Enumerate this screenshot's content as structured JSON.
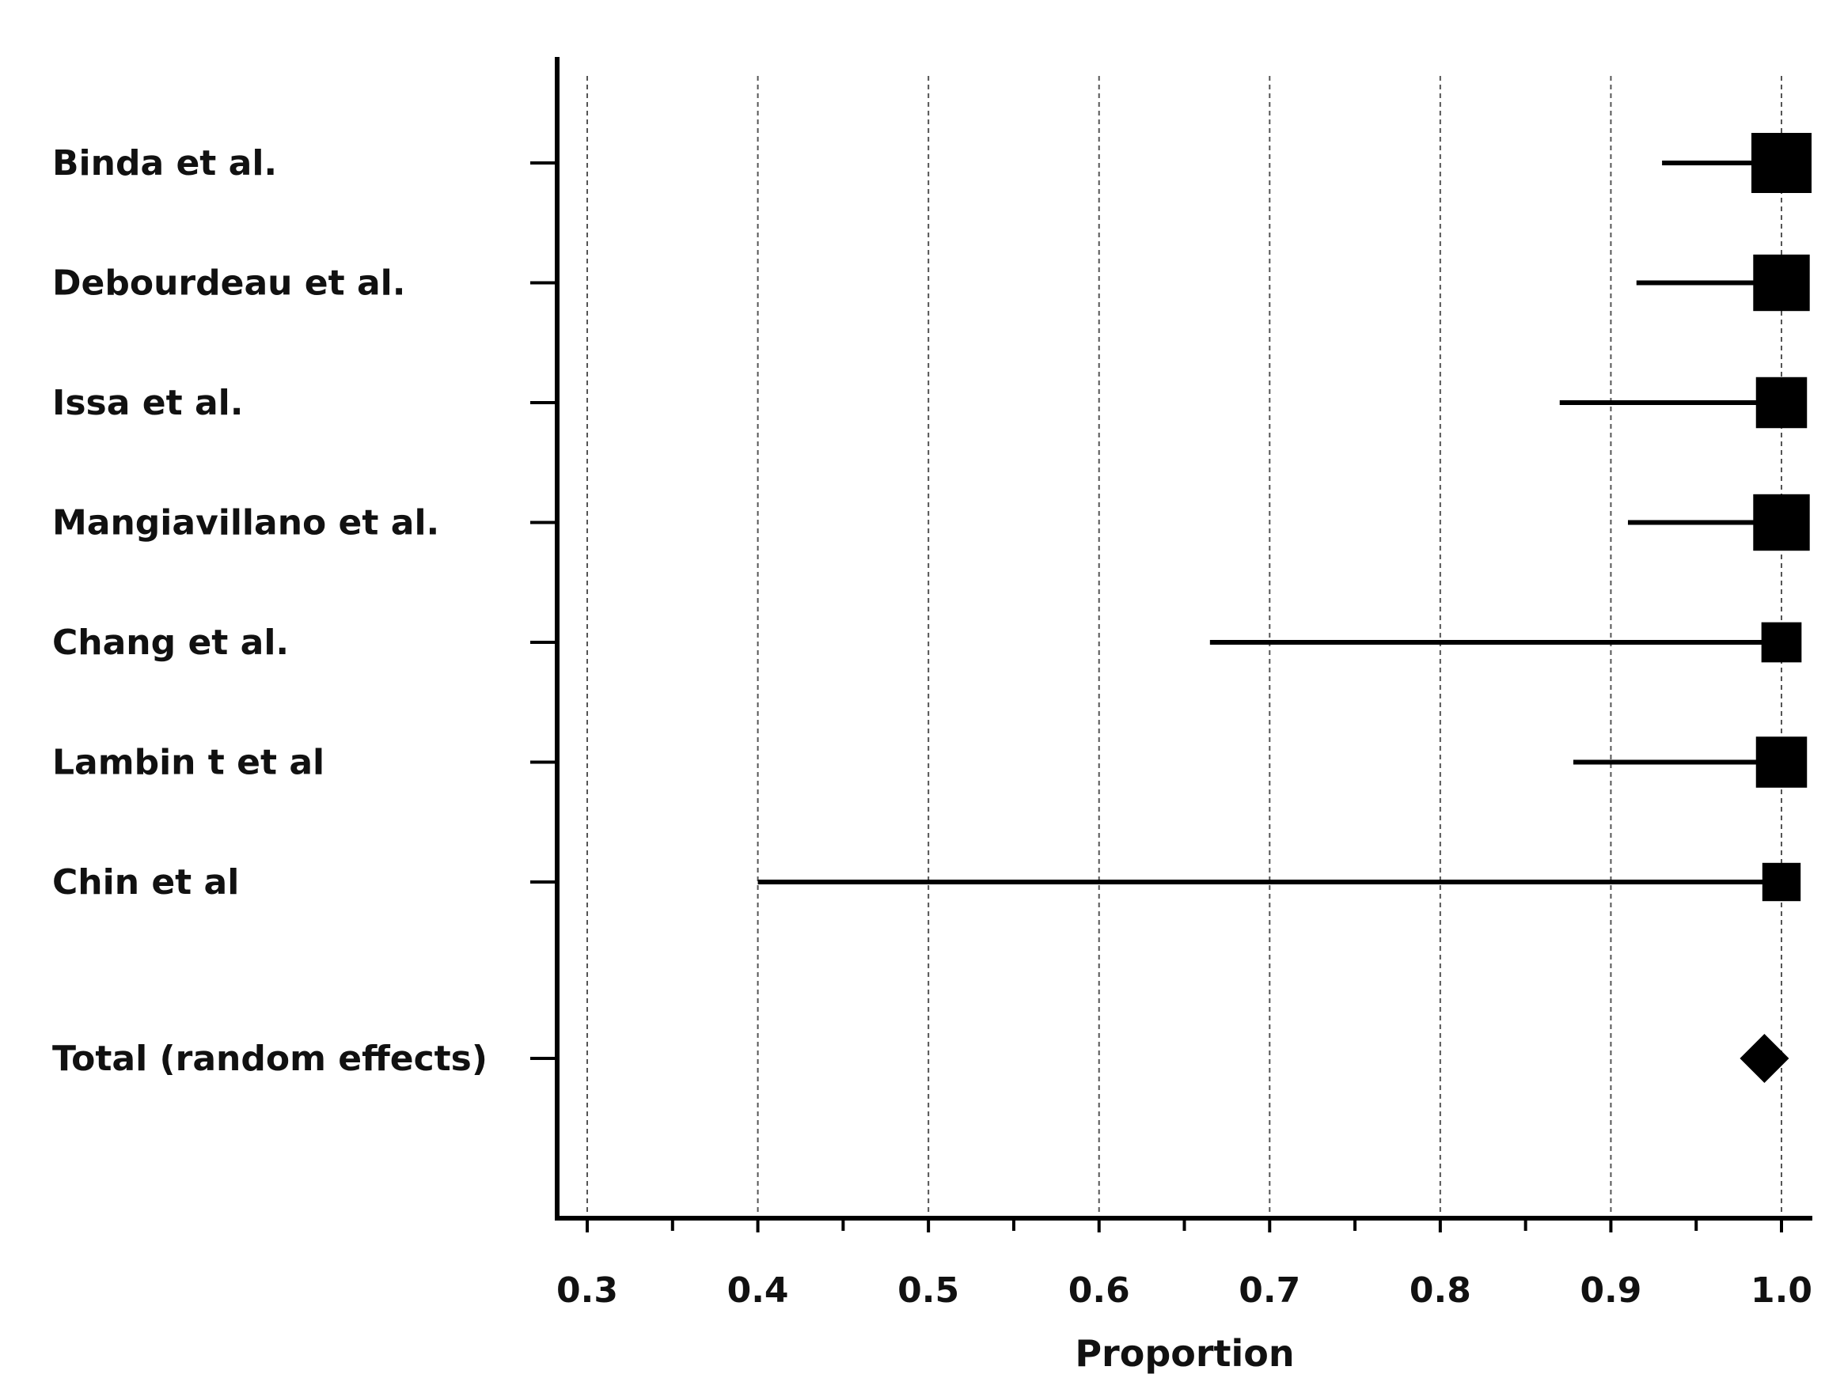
{
  "chart_data": {
    "type": "forest",
    "title": "",
    "xlabel": "Proportion",
    "ylabel": "",
    "xlim": [
      0.28,
      1.02
    ],
    "x_ticks": [
      "0.3",
      "0.4",
      "0.5",
      "0.6",
      "0.7",
      "0.8",
      "0.9",
      "1.0"
    ],
    "x_minor_ticks": [
      0.35,
      0.45,
      0.55,
      0.65,
      0.75,
      0.85,
      0.95
    ],
    "grid": true,
    "studies": [
      {
        "name": "Binda et al.",
        "estimate": 1.0,
        "lower": 0.93,
        "upper": 1.0,
        "weight": 1.0
      },
      {
        "name": "Debourdeau et al.",
        "estimate": 1.0,
        "lower": 0.915,
        "upper": 1.0,
        "weight": 0.9
      },
      {
        "name": "Issa et al.",
        "estimate": 1.0,
        "lower": 0.87,
        "upper": 1.0,
        "weight": 0.75
      },
      {
        "name": "Mangiavillano et al.",
        "estimate": 1.0,
        "lower": 0.91,
        "upper": 1.0,
        "weight": 0.9
      },
      {
        "name": "Chang et al.",
        "estimate": 1.0,
        "lower": 0.665,
        "upper": 1.0,
        "weight": 0.45
      },
      {
        "name": "Lambin t et al",
        "estimate": 1.0,
        "lower": 0.878,
        "upper": 1.0,
        "weight": 0.75
      },
      {
        "name": "Chin et al",
        "estimate": 1.0,
        "lower": 0.4,
        "upper": 1.0,
        "weight": 0.4
      }
    ],
    "total": {
      "name": "Total (random effects)",
      "estimate": 0.99,
      "lower": 0.98,
      "upper": 0.999
    }
  }
}
